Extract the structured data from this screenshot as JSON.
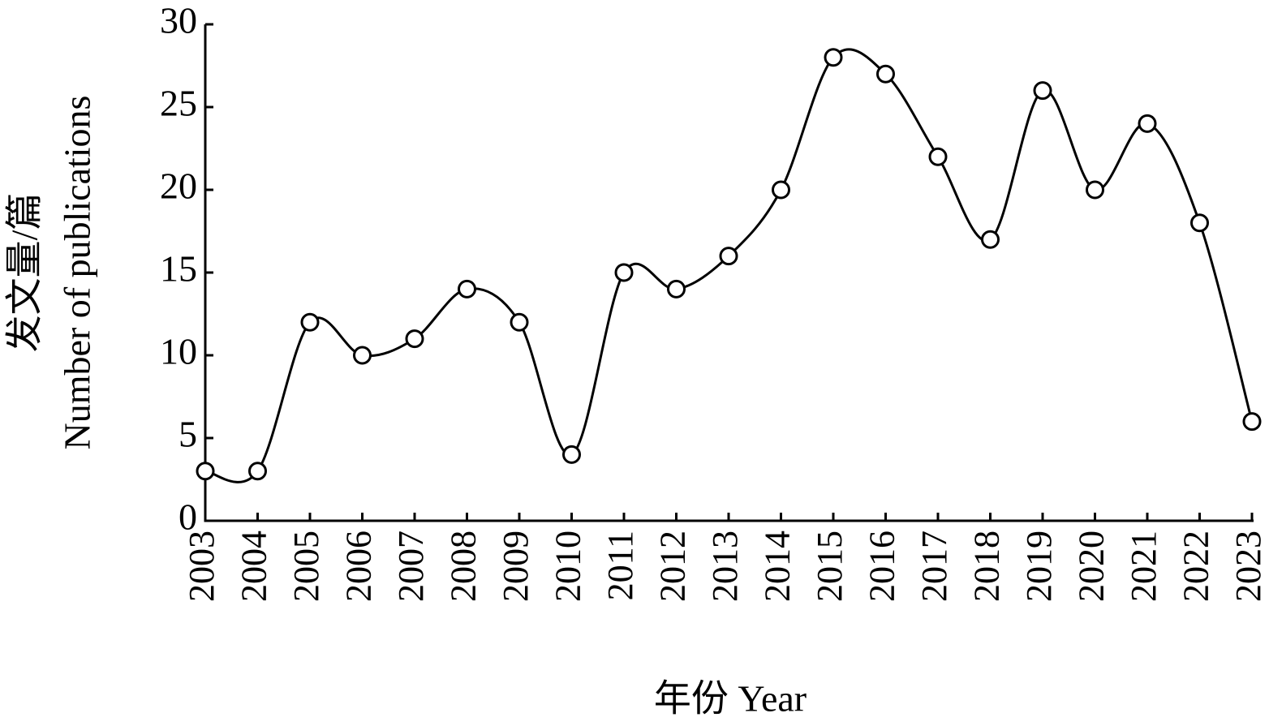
{
  "chart_data": {
    "type": "line",
    "xlabel": "年份 Year",
    "ylabel": [
      "发文量/篇",
      "Number of publications"
    ],
    "categories": [
      "2003",
      "2004",
      "2005",
      "2006",
      "2007",
      "2008",
      "2009",
      "2010",
      "2011",
      "2012",
      "2013",
      "2014",
      "2015",
      "2016",
      "2017",
      "2018",
      "2019",
      "2020",
      "2021",
      "2022",
      "2023"
    ],
    "values": [
      3,
      3,
      12,
      10,
      11,
      14,
      12,
      4,
      15,
      14,
      16,
      20,
      28,
      27,
      22,
      17,
      26,
      20,
      24,
      18,
      6
    ],
    "color": "#000000",
    "smooth": true,
    "marker": "circle",
    "ylim": [
      0,
      30
    ],
    "yticks": [
      0,
      5,
      10,
      15,
      20,
      25,
      30
    ],
    "grid": false
  }
}
